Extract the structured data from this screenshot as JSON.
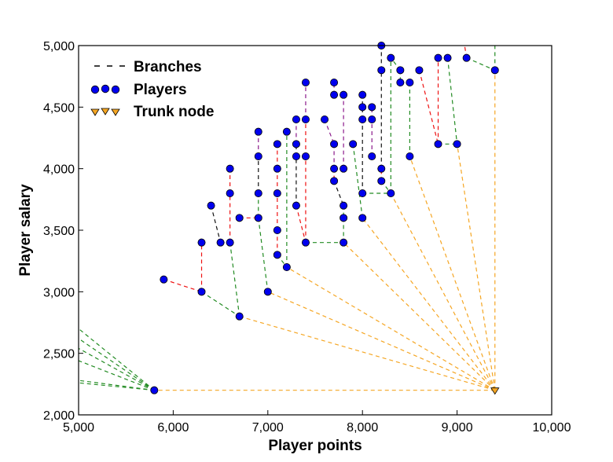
{
  "chart_data": {
    "type": "scatter",
    "title": "",
    "xlabel": "Player points",
    "ylabel": "Player salary",
    "xlim": [
      5000,
      10000
    ],
    "ylim": [
      2000,
      5000
    ],
    "xticks": [
      5000,
      6000,
      7000,
      8000,
      9000,
      10000
    ],
    "yticks": [
      2000,
      2500,
      3000,
      3500,
      4000,
      4500,
      5000
    ],
    "xtick_labels": [
      "5,000",
      "6,000",
      "7,000",
      "8,000",
      "9,000",
      "10,000"
    ],
    "ytick_labels": [
      "2,000",
      "2,500",
      "3,000",
      "3,500",
      "4,000",
      "4,500",
      "5,000"
    ],
    "grid": false,
    "legend_position": "top-left",
    "legend": [
      {
        "label": "Branches",
        "marker": "dashed-line"
      },
      {
        "label": "Players",
        "marker": "blue-circle"
      },
      {
        "label": "Trunk node",
        "marker": "orange-triangle"
      }
    ],
    "colors": {
      "players": "#0000ee",
      "trunk": "#f5a623",
      "branch_green": "#228b22",
      "branch_red": "#ee1111",
      "branch_black": "#111111",
      "branch_purple": "#8b1a8b",
      "branch_orange": "#f5a623"
    },
    "trunk_nodes": [
      {
        "x": 9400,
        "y": 2200
      },
      {
        "x": 5800,
        "y": 2200
      }
    ],
    "players": [
      [
        5900,
        3100
      ],
      [
        6300,
        3000
      ],
      [
        6300,
        3400
      ],
      [
        6400,
        3700
      ],
      [
        6500,
        3400
      ],
      [
        6600,
        3400
      ],
      [
        6600,
        3800
      ],
      [
        6600,
        4000
      ],
      [
        6700,
        2800
      ],
      [
        6700,
        3600
      ],
      [
        6900,
        3600
      ],
      [
        6900,
        3800
      ],
      [
        6900,
        4100
      ],
      [
        6900,
        4300
      ],
      [
        7000,
        3000
      ],
      [
        7100,
        3300
      ],
      [
        7100,
        3500
      ],
      [
        7100,
        3800
      ],
      [
        7100,
        4000
      ],
      [
        7100,
        4200
      ],
      [
        7200,
        3200
      ],
      [
        7200,
        4300
      ],
      [
        7300,
        3700
      ],
      [
        7300,
        4100
      ],
      [
        7300,
        4200
      ],
      [
        7300,
        4400
      ],
      [
        7400,
        3400
      ],
      [
        7400,
        4100
      ],
      [
        7400,
        4400
      ],
      [
        7400,
        4700
      ],
      [
        7600,
        4400
      ],
      [
        7700,
        3900
      ],
      [
        7700,
        4000
      ],
      [
        7700,
        4200
      ],
      [
        7700,
        4600
      ],
      [
        7700,
        4700
      ],
      [
        7800,
        3400
      ],
      [
        7800,
        3600
      ],
      [
        7800,
        3700
      ],
      [
        7800,
        4000
      ],
      [
        7800,
        4600
      ],
      [
        7900,
        4200
      ],
      [
        8000,
        3600
      ],
      [
        8000,
        3800
      ],
      [
        8000,
        4400
      ],
      [
        8000,
        4500
      ],
      [
        8000,
        4600
      ],
      [
        8100,
        4100
      ],
      [
        8100,
        4400
      ],
      [
        8100,
        4500
      ],
      [
        8200,
        3900
      ],
      [
        8200,
        4000
      ],
      [
        8200,
        4800
      ],
      [
        8200,
        5000
      ],
      [
        8300,
        3800
      ],
      [
        8300,
        4900
      ],
      [
        8400,
        4700
      ],
      [
        8400,
        4800
      ],
      [
        8500,
        4100
      ],
      [
        8500,
        4700
      ],
      [
        8600,
        4800
      ],
      [
        8800,
        4200
      ],
      [
        8800,
        4900
      ],
      [
        8900,
        4900
      ],
      [
        9000,
        4200
      ],
      [
        9100,
        4900
      ],
      [
        9400,
        4800
      ]
    ],
    "branches": [
      {
        "from": [
          5900,
          3100
        ],
        "to": [
          6300,
          3000
        ],
        "color": "red"
      },
      {
        "from": [
          6300,
          3000
        ],
        "to": [
          6300,
          3400
        ],
        "color": "red"
      },
      {
        "from": [
          6300,
          3000
        ],
        "to": [
          6700,
          2800
        ],
        "color": "green"
      },
      {
        "from": [
          6400,
          3700
        ],
        "to": [
          6500,
          3400
        ],
        "color": "black"
      },
      {
        "from": [
          6500,
          3400
        ],
        "to": [
          6600,
          3400
        ],
        "color": "black"
      },
      {
        "from": [
          6600,
          3400
        ],
        "to": [
          6600,
          3800
        ],
        "color": "red"
      },
      {
        "from": [
          6600,
          3800
        ],
        "to": [
          6600,
          4000
        ],
        "color": "red"
      },
      {
        "from": [
          6600,
          3400
        ],
        "to": [
          6700,
          2800
        ],
        "color": "green"
      },
      {
        "from": [
          6700,
          3600
        ],
        "to": [
          6900,
          3600
        ],
        "color": "red"
      },
      {
        "from": [
          6900,
          3600
        ],
        "to": [
          6900,
          3800
        ],
        "color": "green"
      },
      {
        "from": [
          6900,
          3800
        ],
        "to": [
          6900,
          4100
        ],
        "color": "black"
      },
      {
        "from": [
          6900,
          4100
        ],
        "to": [
          6900,
          4300
        ],
        "color": "purple"
      },
      {
        "from": [
          6900,
          3600
        ],
        "to": [
          7000,
          3000
        ],
        "color": "green"
      },
      {
        "from": [
          7100,
          3300
        ],
        "to": [
          7100,
          3500
        ],
        "color": "red"
      },
      {
        "from": [
          7100,
          3500
        ],
        "to": [
          7100,
          3800
        ],
        "color": "red"
      },
      {
        "from": [
          7100,
          3800
        ],
        "to": [
          7100,
          4000
        ],
        "color": "red"
      },
      {
        "from": [
          7100,
          4000
        ],
        "to": [
          7100,
          4200
        ],
        "color": "red"
      },
      {
        "from": [
          7100,
          3300
        ],
        "to": [
          7200,
          3200
        ],
        "color": "green"
      },
      {
        "from": [
          7200,
          3200
        ],
        "to": [
          7200,
          4300
        ],
        "color": "green"
      },
      {
        "from": [
          7300,
          3700
        ],
        "to": [
          7300,
          4100
        ],
        "color": "black"
      },
      {
        "from": [
          7300,
          4100
        ],
        "to": [
          7300,
          4200
        ],
        "color": "black"
      },
      {
        "from": [
          7300,
          4200
        ],
        "to": [
          7300,
          4400
        ],
        "color": "purple"
      },
      {
        "from": [
          7300,
          3700
        ],
        "to": [
          7400,
          3400
        ],
        "color": "red"
      },
      {
        "from": [
          7400,
          3400
        ],
        "to": [
          7400,
          4100
        ],
        "color": "red"
      },
      {
        "from": [
          7400,
          4100
        ],
        "to": [
          7400,
          4400
        ],
        "color": "red"
      },
      {
        "from": [
          7400,
          4400
        ],
        "to": [
          7400,
          4700
        ],
        "color": "purple"
      },
      {
        "from": [
          7400,
          3400
        ],
        "to": [
          7800,
          3400
        ],
        "color": "green"
      },
      {
        "from": [
          7600,
          4400
        ],
        "to": [
          7700,
          4200
        ],
        "color": "purple"
      },
      {
        "from": [
          7700,
          4200
        ],
        "to": [
          7700,
          4000
        ],
        "color": "purple"
      },
      {
        "from": [
          7700,
          4000
        ],
        "to": [
          7700,
          3900
        ],
        "color": "red"
      },
      {
        "from": [
          7700,
          4600
        ],
        "to": [
          7700,
          4700
        ],
        "color": "purple"
      },
      {
        "from": [
          7700,
          3900
        ],
        "to": [
          7800,
          3700
        ],
        "color": "black"
      },
      {
        "from": [
          7800,
          3700
        ],
        "to": [
          7800,
          3600
        ],
        "color": "green"
      },
      {
        "from": [
          7800,
          3600
        ],
        "to": [
          7800,
          3400
        ],
        "color": "green"
      },
      {
        "from": [
          7800,
          4000
        ],
        "to": [
          7800,
          4600
        ],
        "color": "purple"
      },
      {
        "from": [
          7900,
          4200
        ],
        "to": [
          8000,
          3600
        ],
        "color": "green"
      },
      {
        "from": [
          8000,
          3800
        ],
        "to": [
          8000,
          4400
        ],
        "color": "black"
      },
      {
        "from": [
          8000,
          4400
        ],
        "to": [
          8000,
          4600
        ],
        "color": "black"
      },
      {
        "from": [
          8000,
          3800
        ],
        "to": [
          8300,
          3800
        ],
        "color": "green"
      },
      {
        "from": [
          8100,
          4100
        ],
        "to": [
          8100,
          4400
        ],
        "color": "purple"
      },
      {
        "from": [
          8100,
          4400
        ],
        "to": [
          8100,
          4500
        ],
        "color": "purple"
      },
      {
        "from": [
          8200,
          3900
        ],
        "to": [
          8200,
          4000
        ],
        "color": "red"
      },
      {
        "from": [
          8200,
          4000
        ],
        "to": [
          8200,
          4800
        ],
        "color": "black"
      },
      {
        "from": [
          8200,
          4800
        ],
        "to": [
          8200,
          5000
        ],
        "color": "black"
      },
      {
        "from": [
          8200,
          3900
        ],
        "to": [
          8300,
          3800
        ],
        "color": "green"
      },
      {
        "from": [
          8300,
          3800
        ],
        "to": [
          8300,
          4900
        ],
        "color": "green"
      },
      {
        "from": [
          8400,
          4800
        ],
        "to": [
          8400,
          4700
        ],
        "color": "green"
      },
      {
        "from": [
          8400,
          4700
        ],
        "to": [
          8500,
          4700
        ],
        "color": "green"
      },
      {
        "from": [
          8500,
          4700
        ],
        "to": [
          8500,
          4100
        ],
        "color": "green"
      },
      {
        "from": [
          8400,
          4800
        ],
        "to": [
          8300,
          4900
        ],
        "color": "green"
      },
      {
        "from": [
          8600,
          4800
        ],
        "to": [
          8800,
          4200
        ],
        "color": "red"
      },
      {
        "from": [
          8800,
          4200
        ],
        "to": [
          8800,
          4900
        ],
        "color": "red"
      },
      {
        "from": [
          8800,
          4200
        ],
        "to": [
          9000,
          4200
        ],
        "color": "green"
      },
      {
        "from": [
          8900,
          4900
        ],
        "to": [
          9000,
          4200
        ],
        "color": "green"
      },
      {
        "from": [
          9100,
          4900
        ],
        "to": [
          9400,
          4800
        ],
        "color": "green"
      },
      {
        "from": [
          9100,
          4900
        ],
        "to": [
          9080,
          5000
        ],
        "color": "red"
      },
      {
        "from": [
          9400,
          4800
        ],
        "to": [
          9400,
          5000
        ],
        "color": "green"
      },
      {
        "from": [
          9400,
          2200
        ],
        "to": [
          5800,
          2200
        ],
        "color": "orange"
      },
      {
        "from": [
          9400,
          2200
        ],
        "to": [
          6700,
          2800
        ],
        "color": "orange"
      },
      {
        "from": [
          9400,
          2200
        ],
        "to": [
          7000,
          3000
        ],
        "color": "orange"
      },
      {
        "from": [
          9400,
          2200
        ],
        "to": [
          7200,
          3200
        ],
        "color": "orange"
      },
      {
        "from": [
          9400,
          2200
        ],
        "to": [
          7800,
          3400
        ],
        "color": "orange"
      },
      {
        "from": [
          9400,
          2200
        ],
        "to": [
          8000,
          3600
        ],
        "color": "orange"
      },
      {
        "from": [
          9400,
          2200
        ],
        "to": [
          8300,
          3800
        ],
        "color": "orange"
      },
      {
        "from": [
          9400,
          2200
        ],
        "to": [
          8500,
          4100
        ],
        "color": "orange"
      },
      {
        "from": [
          9400,
          2200
        ],
        "to": [
          9000,
          4200
        ],
        "color": "orange"
      },
      {
        "from": [
          9400,
          2200
        ],
        "to": [
          9400,
          4800
        ],
        "color": "orange"
      },
      {
        "from": [
          5800,
          2200
        ],
        "to": [
          5000,
          2700
        ],
        "color": "green"
      },
      {
        "from": [
          5800,
          2200
        ],
        "to": [
          5000,
          2620
        ],
        "color": "green"
      },
      {
        "from": [
          5800,
          2200
        ],
        "to": [
          5000,
          2540
        ],
        "color": "green"
      },
      {
        "from": [
          5800,
          2200
        ],
        "to": [
          5000,
          2440
        ],
        "color": "green"
      },
      {
        "from": [
          5800,
          2200
        ],
        "to": [
          5000,
          2280
        ],
        "color": "green"
      },
      {
        "from": [
          5800,
          2200
        ],
        "to": [
          5000,
          2260
        ],
        "color": "green"
      }
    ]
  }
}
